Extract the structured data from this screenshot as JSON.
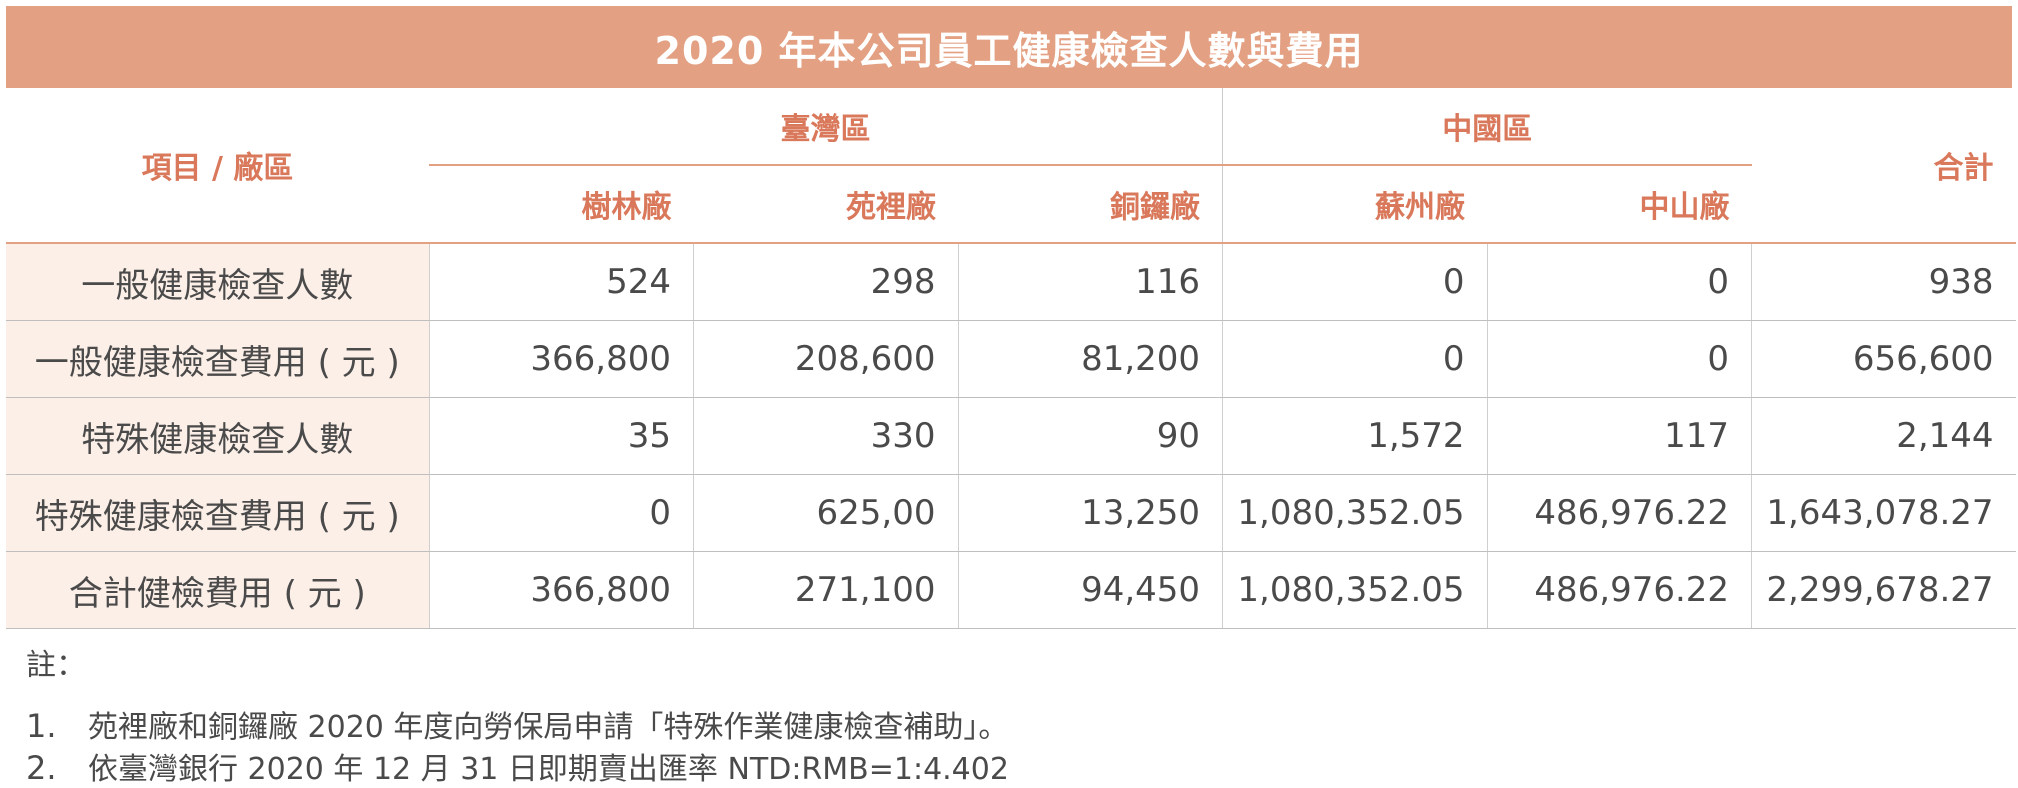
{
  "title": "2020 年本公司員工健康檢查人數與費用",
  "header": {
    "item": "項目 / 廠區",
    "regions": [
      "臺灣區",
      "中國區"
    ],
    "plants": [
      "樹林廠",
      "苑裡廠",
      "銅鑼廠",
      "蘇州廠",
      "中山廠"
    ],
    "total": "合計"
  },
  "rows": [
    {
      "label": "一般健康檢查人數",
      "values": [
        "524",
        "298",
        "116",
        "0",
        "0",
        "938"
      ]
    },
    {
      "label": "一般健康檢查費用 ( 元 )",
      "values": [
        "366,800",
        "208,600",
        "81,200",
        "0",
        "0",
        "656,600"
      ]
    },
    {
      "label": "特殊健康檢查人數",
      "values": [
        "35",
        "330",
        "90",
        "1,572",
        "117",
        "2,144"
      ]
    },
    {
      "label": "特殊健康檢查費用 ( 元 )",
      "values": [
        "0",
        "625,00",
        "13,250",
        "1,080,352.05",
        "486,976.22",
        "1,643,078.27"
      ]
    },
    {
      "label": "合計健檢費用 ( 元 )",
      "values": [
        "366,800",
        "271,100",
        "94,450",
        "1,080,352.05",
        "486,976.22",
        "2,299,678.27"
      ]
    }
  ],
  "notes": {
    "heading": "註：",
    "items": [
      {
        "num": "1.",
        "text": "苑裡廠和銅鑼廠 2020 年度向勞保局申請「特殊作業健康檢查補助」。"
      },
      {
        "num": "2.",
        "text": "依臺灣銀行 2020 年 12 月 31 日即期賣出匯率 NTD:RMB=1:4.402"
      }
    ]
  }
}
